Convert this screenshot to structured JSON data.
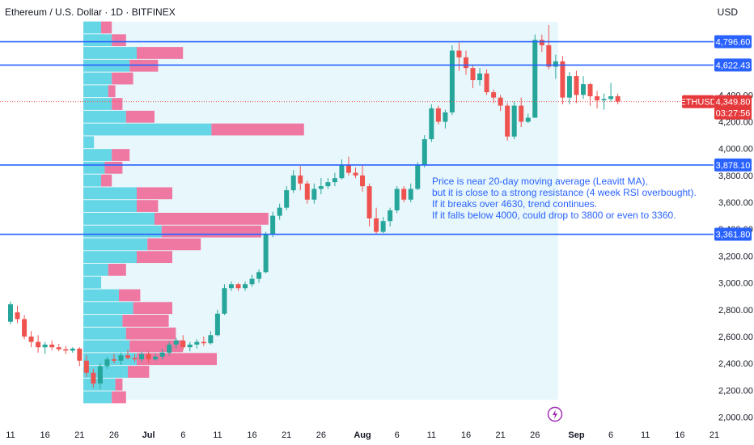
{
  "header": {
    "title": "Ethereum / U.S. Dollar · 1D · BITFINEX",
    "currency": "USD"
  },
  "colors": {
    "up": "#26a69a",
    "down": "#ef5350",
    "line": "#2962ff",
    "price_tag": "#e5383b",
    "vp_up": "#4dd0e1",
    "vp_down": "#f06292",
    "range_fill": "#e8f7fb"
  },
  "chart_data": {
    "type": "candlestick",
    "symbol": "ETHUSD",
    "ylim": [
      2000,
      4900
    ],
    "y_ticks": [
      {
        "value": 4400,
        "label": "4,400.00"
      },
      {
        "value": 4200,
        "label": "4,200.00"
      },
      {
        "value": 4000,
        "label": "4,000.00"
      },
      {
        "value": 3800,
        "label": "3,800.00"
      },
      {
        "value": 3600,
        "label": "3,600.00"
      },
      {
        "value": 3400,
        "label": "3,400.00"
      },
      {
        "value": 3200,
        "label": "3,200.00"
      },
      {
        "value": 3000,
        "label": "3,000.00"
      },
      {
        "value": 2800,
        "label": "2,800.00"
      },
      {
        "value": 2600,
        "label": "2,600.00"
      },
      {
        "value": 2400,
        "label": "2,400.00"
      },
      {
        "value": 2200,
        "label": "2,200.00"
      },
      {
        "value": 2000,
        "label": "2,000.00"
      }
    ],
    "x_ticks": [
      {
        "day": 0,
        "label": "11"
      },
      {
        "day": 5,
        "label": "16"
      },
      {
        "day": 10,
        "label": "21"
      },
      {
        "day": 15,
        "label": "26"
      },
      {
        "day": 20,
        "label": "Jul"
      },
      {
        "day": 25,
        "label": "6"
      },
      {
        "day": 30,
        "label": "11"
      },
      {
        "day": 35,
        "label": "16"
      },
      {
        "day": 40,
        "label": "21"
      },
      {
        "day": 45,
        "label": "26"
      },
      {
        "day": 51,
        "label": "Aug"
      },
      {
        "day": 56,
        "label": "6"
      },
      {
        "day": 61,
        "label": "11"
      },
      {
        "day": 66,
        "label": "16"
      },
      {
        "day": 71,
        "label": "21"
      },
      {
        "day": 76,
        "label": "26"
      },
      {
        "day": 82,
        "label": "Sep"
      },
      {
        "day": 87,
        "label": "6"
      },
      {
        "day": 92,
        "label": "11"
      },
      {
        "day": 97,
        "label": "16"
      },
      {
        "day": 102,
        "label": "21"
      }
    ],
    "candles": [
      [
        2710,
        2860,
        2690,
        2840
      ],
      [
        2780,
        2830,
        2700,
        2730
      ],
      [
        2730,
        2760,
        2580,
        2600
      ],
      [
        2600,
        2640,
        2520,
        2560
      ],
      [
        2560,
        2610,
        2480,
        2520
      ],
      [
        2520,
        2560,
        2470,
        2540
      ],
      [
        2540,
        2570,
        2500,
        2520
      ],
      [
        2520,
        2545,
        2490,
        2505
      ],
      [
        2505,
        2530,
        2470,
        2495
      ],
      [
        2495,
        2520,
        2480,
        2510
      ],
      [
        2510,
        2520,
        2380,
        2420
      ],
      [
        2420,
        2460,
        2300,
        2330
      ],
      [
        2330,
        2360,
        2220,
        2250
      ],
      [
        2250,
        2400,
        2210,
        2380
      ],
      [
        2380,
        2450,
        2360,
        2430
      ],
      [
        2430,
        2470,
        2400,
        2420
      ],
      [
        2420,
        2480,
        2390,
        2460
      ],
      [
        2460,
        2500,
        2430,
        2440
      ],
      [
        2440,
        2470,
        2410,
        2430
      ],
      [
        2430,
        2490,
        2410,
        2470
      ],
      [
        2470,
        2490,
        2400,
        2430
      ],
      [
        2430,
        2470,
        2420,
        2450
      ],
      [
        2450,
        2510,
        2430,
        2480
      ],
      [
        2480,
        2560,
        2460,
        2540
      ],
      [
        2540,
        2590,
        2510,
        2570
      ],
      [
        2570,
        2610,
        2500,
        2520
      ],
      [
        2520,
        2560,
        2490,
        2540
      ],
      [
        2540,
        2580,
        2510,
        2560
      ],
      [
        2560,
        2600,
        2530,
        2550
      ],
      [
        2550,
        2640,
        2540,
        2610
      ],
      [
        2610,
        2800,
        2600,
        2770
      ],
      [
        2770,
        2990,
        2760,
        2960
      ],
      [
        2960,
        3010,
        2940,
        2990
      ],
      [
        2990,
        3000,
        2940,
        2960
      ],
      [
        2960,
        3010,
        2940,
        2990
      ],
      [
        2990,
        3060,
        2970,
        3030
      ],
      [
        3030,
        3100,
        3000,
        3080
      ],
      [
        3080,
        3380,
        3070,
        3360
      ],
      [
        3360,
        3530,
        3340,
        3500
      ],
      [
        3500,
        3590,
        3470,
        3560
      ],
      [
        3560,
        3720,
        3540,
        3690
      ],
      [
        3690,
        3840,
        3670,
        3800
      ],
      [
        3800,
        3870,
        3690,
        3740
      ],
      [
        3740,
        3760,
        3590,
        3620
      ],
      [
        3620,
        3740,
        3590,
        3700
      ],
      [
        3700,
        3780,
        3660,
        3720
      ],
      [
        3720,
        3780,
        3700,
        3750
      ],
      [
        3750,
        3820,
        3720,
        3780
      ],
      [
        3780,
        3920,
        3770,
        3880
      ],
      [
        3880,
        3940,
        3800,
        3820
      ],
      [
        3820,
        3860,
        3780,
        3800
      ],
      [
        3800,
        3880,
        3680,
        3720
      ],
      [
        3720,
        3740,
        3420,
        3480
      ],
      [
        3480,
        3560,
        3360,
        3380
      ],
      [
        3380,
        3490,
        3370,
        3460
      ],
      [
        3460,
        3560,
        3420,
        3540
      ],
      [
        3540,
        3720,
        3520,
        3700
      ],
      [
        3700,
        3720,
        3600,
        3620
      ],
      [
        3620,
        3740,
        3600,
        3700
      ],
      [
        3700,
        3900,
        3690,
        3880
      ],
      [
        3880,
        4100,
        3860,
        4070
      ],
      [
        4070,
        4330,
        4050,
        4300
      ],
      [
        4300,
        4320,
        4180,
        4200
      ],
      [
        4200,
        4290,
        4150,
        4270
      ],
      [
        4270,
        4770,
        4250,
        4730
      ],
      [
        4730,
        4790,
        4580,
        4680
      ],
      [
        4680,
        4730,
        4550,
        4600
      ],
      [
        4600,
        4620,
        4450,
        4510
      ],
      [
        4510,
        4600,
        4470,
        4560
      ],
      [
        4560,
        4590,
        4400,
        4420
      ],
      [
        4420,
        4440,
        4340,
        4380
      ],
      [
        4380,
        4400,
        4280,
        4320
      ],
      [
        4320,
        4340,
        4060,
        4090
      ],
      [
        4090,
        4350,
        4070,
        4320
      ],
      [
        4320,
        4380,
        4160,
        4200
      ],
      [
        4200,
        4260,
        4190,
        4230
      ],
      [
        4230,
        4850,
        4230,
        4810
      ],
      [
        4810,
        4850,
        4720,
        4770
      ],
      [
        4770,
        4920,
        4590,
        4610
      ],
      [
        4610,
        4700,
        4520,
        4650
      ],
      [
        4650,
        4690,
        4330,
        4380
      ],
      [
        4380,
        4570,
        4330,
        4540
      ],
      [
        4540,
        4580,
        4340,
        4400
      ],
      [
        4400,
        4540,
        4370,
        4480
      ],
      [
        4480,
        4490,
        4320,
        4390
      ],
      [
        4390,
        4430,
        4300,
        4360
      ],
      [
        4360,
        4410,
        4290,
        4370
      ],
      [
        4370,
        4490,
        4350,
        4390
      ],
      [
        4390,
        4410,
        4330,
        4350
      ]
    ],
    "levels": [
      {
        "value": 4796.6,
        "label": "4,796.60"
      },
      {
        "value": 4622.43,
        "label": "4,622.43"
      },
      {
        "value": 3878.1,
        "label": "3,878.10"
      },
      {
        "value": 3361.8,
        "label": "3,361.80"
      }
    ],
    "current_price": {
      "symbol": "ETHUSD",
      "value": 4349.8,
      "label": "4,349.80",
      "countdown": "03:27:56"
    },
    "volume_profile": {
      "range": [
        2100,
        4950
      ],
      "rows": [
        {
          "up": 0.16,
          "down": 0.08
        },
        {
          "up": 0.18,
          "down": 0.04
        },
        {
          "up": 0.25,
          "down": 0.12
        },
        {
          "up": 0.3,
          "down": 0.45
        },
        {
          "up": 0.26,
          "down": 0.3
        },
        {
          "up": 0.24,
          "down": 0.28
        },
        {
          "up": 0.22,
          "down": 0.26
        },
        {
          "up": 0.28,
          "down": 0.22
        },
        {
          "up": 0.2,
          "down": 0.12
        },
        {
          "up": 0.1,
          "down": 0.0
        },
        {
          "up": 0.14,
          "down": 0.1
        },
        {
          "up": 0.3,
          "down": 0.2
        },
        {
          "up": 0.36,
          "down": 0.3
        },
        {
          "up": 0.44,
          "down": 0.56
        },
        {
          "up": 0.4,
          "down": 0.64
        },
        {
          "up": 0.3,
          "down": 0.12
        },
        {
          "up": 0.3,
          "down": 0.2
        },
        {
          "up": 0.1,
          "down": 0.06
        },
        {
          "up": 0.12,
          "down": 0.1
        },
        {
          "up": 0.16,
          "down": 0.1
        },
        {
          "up": 0.06,
          "down": 0.0
        },
        {
          "up": 0.72,
          "down": 0.52
        },
        {
          "up": 0.24,
          "down": 0.16
        },
        {
          "up": 0.16,
          "down": 0.06
        },
        {
          "up": 0.14,
          "down": 0.04
        },
        {
          "up": 0.16,
          "down": 0.12
        },
        {
          "up": 0.26,
          "down": 0.16
        },
        {
          "up": 0.3,
          "down": 0.26
        },
        {
          "up": 0.16,
          "down": 0.08
        },
        {
          "up": 0.1,
          "down": 0.06
        }
      ]
    },
    "annotation": [
      "Price is near 20-day moving average (Leavitt MA),",
      "but it is close to a strong resistance (4 week RSI overbought).",
      "If it breaks over 4630, trend continues.",
      "If it falls below 4000, could drop to 3800 or even to 3360."
    ]
  }
}
